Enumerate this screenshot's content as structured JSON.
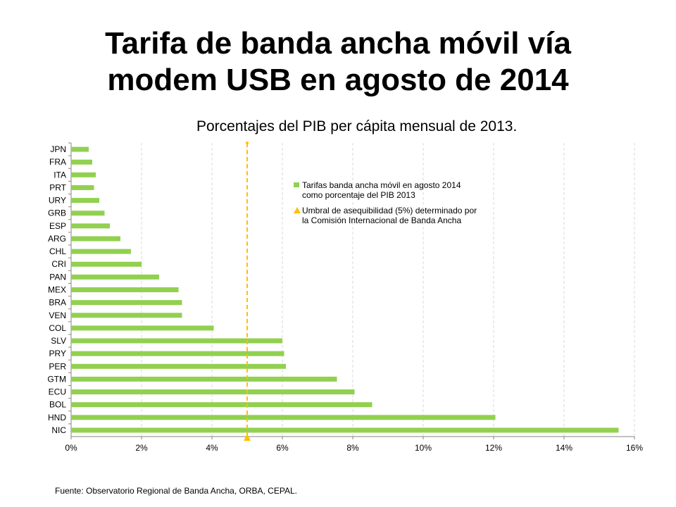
{
  "slide": {
    "title_line1": "Tarifa de banda ancha móvil vía",
    "title_line2": "modem USB en agosto de 2014",
    "subtitle": "Porcentajes del PIB per cápita mensual de 2013.",
    "source": "Fuente: Observatorio Regional de Banda Ancha, ORBA, CEPAL."
  },
  "chart_data": {
    "type": "bar",
    "orientation": "horizontal",
    "categories": [
      "JPN",
      "FRA",
      "ITA",
      "PRT",
      "URY",
      "GRB",
      "ESP",
      "ARG",
      "CHL",
      "CRI",
      "PAN",
      "MEX",
      "BRA",
      "VEN",
      "COL",
      "SLV",
      "PRY",
      "PER",
      "GTM",
      "ECU",
      "BOL",
      "HND",
      "NIC"
    ],
    "series": [
      {
        "name": "Tarifas banda ancha móvil en agosto 2014 como porcentaje del PIB 2013",
        "values": [
          0.5,
          0.6,
          0.7,
          0.65,
          0.8,
          0.95,
          1.1,
          1.4,
          1.7,
          2.0,
          2.5,
          3.05,
          3.15,
          3.15,
          4.05,
          6.0,
          6.05,
          6.1,
          7.55,
          8.05,
          8.55,
          12.05,
          15.55
        ],
        "color": "#92d050"
      },
      {
        "name": "Umbral de asequibilidad (5%) determinado por la Comisión Internacional de Banda Ancha",
        "threshold": 5,
        "color": "#ffc000"
      }
    ],
    "x_ticks": [
      "0%",
      "2%",
      "4%",
      "6%",
      "8%",
      "10%",
      "12%",
      "14%",
      "16%"
    ],
    "xlim": [
      0,
      16
    ],
    "grid": "vertical dashed",
    "legend_position": "top-right",
    "legend": [
      {
        "line1": "Tarifas banda ancha móvil en agosto 2014",
        "line2": "como porcentaje del PIB 2013"
      },
      {
        "line1": "Umbral de asequibilidad (5%) determinado por",
        "line2": "la Comisión Internacional de Banda Ancha"
      }
    ]
  }
}
